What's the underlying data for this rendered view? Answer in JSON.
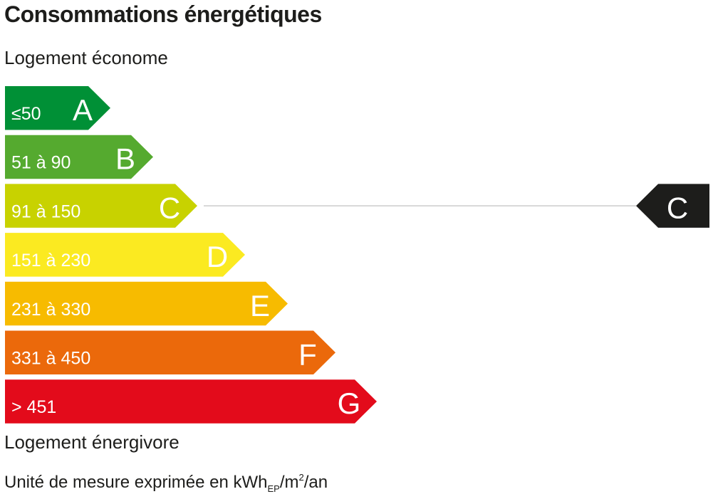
{
  "chart_data": {
    "type": "bar",
    "title": "Consommations énergétiques",
    "top_label": "Logement économe",
    "bottom_label": "Logement énergivore",
    "unit": {
      "prefix": "Unité de mesure exprimée en kWh",
      "sub": "EP",
      "middle": "/m",
      "sup": "2",
      "suffix": "/an"
    },
    "classes": [
      {
        "letter": "A",
        "range": "≤50",
        "color": "#009036"
      },
      {
        "letter": "B",
        "range": "51 à 90",
        "color": "#55aa2f"
      },
      {
        "letter": "C",
        "range": "91 à 150",
        "color": "#c8d200"
      },
      {
        "letter": "D",
        "range": "151 à 230",
        "color": "#fbea21"
      },
      {
        "letter": "E",
        "range": "231 à 330",
        "color": "#f7bb00"
      },
      {
        "letter": "F",
        "range": "331 à 450",
        "color": "#eb690b"
      },
      {
        "letter": "G",
        "range": "> 451",
        "color": "#e30b1b"
      }
    ],
    "rating": {
      "letter": "C",
      "color": "#1d1d1b"
    },
    "indicator_line_color": "#cccccc"
  }
}
